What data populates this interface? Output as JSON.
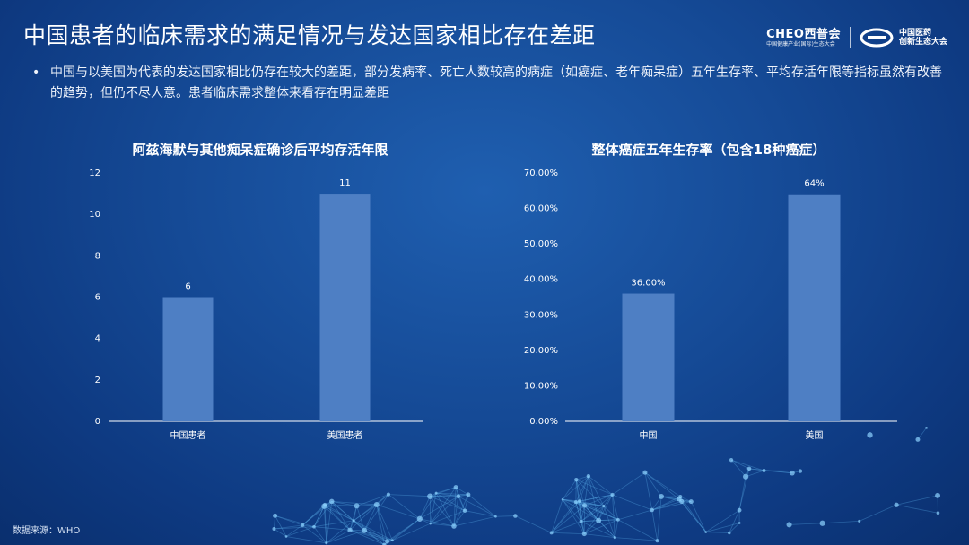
{
  "title": "中国患者的临床需求的满足情况与发达国家相比存在差距",
  "logos": {
    "logo1_main": "CHEO西普会",
    "logo1_sub": "中国健康产业(国际)生态大会",
    "logo2_line1": "中国医药",
    "logo2_line2": "创新生态大会"
  },
  "bullet": {
    "dot": "•",
    "text": "中国与以美国为代表的发达国家相比仍存在较大的差距，部分发病率、死亡人数较高的病症（如癌症、老年痴呆症）五年生存率、平均存活年限等指标虽然有改善的趋势，但仍不尽人意。患者临床需求整体来看存在明显差距"
  },
  "source": "数据来源：WHO",
  "colors": {
    "bar": "#4e7fc4",
    "axis": "#ffffff"
  },
  "chart_data": [
    {
      "type": "bar",
      "title": "阿兹海默与其他痴呆症确诊后平均存活年限",
      "categories": [
        "中国患者",
        "美国患者"
      ],
      "values": [
        6,
        11
      ],
      "value_labels": [
        "6",
        "11"
      ],
      "ylim": [
        0,
        12
      ],
      "yticks": [
        0,
        2,
        4,
        6,
        8,
        10,
        12
      ],
      "ytick_labels": [
        "0",
        "2",
        "4",
        "6",
        "8",
        "10",
        "12"
      ],
      "xlabel": "",
      "ylabel": "",
      "grid": false,
      "legend": "none"
    },
    {
      "type": "bar",
      "title": "整体癌症五年生存率（包含18种癌症）",
      "categories": [
        "中国",
        "美国"
      ],
      "values": [
        36,
        64
      ],
      "value_labels": [
        "36.00%",
        "64%"
      ],
      "ylim": [
        0,
        70
      ],
      "yticks": [
        0,
        10,
        20,
        30,
        40,
        50,
        60,
        70
      ],
      "ytick_labels": [
        "0.00%",
        "10.00%",
        "20.00%",
        "30.00%",
        "40.00%",
        "50.00%",
        "60.00%",
        "70.00%"
      ],
      "xlabel": "",
      "ylabel": "",
      "grid": false,
      "legend": "none"
    }
  ]
}
